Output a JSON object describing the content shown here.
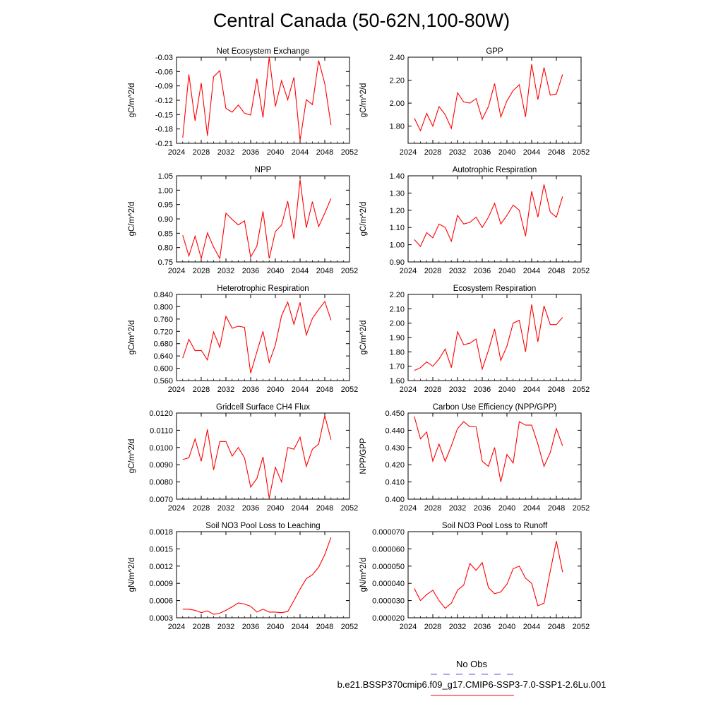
{
  "figure": {
    "title": "Central Canada (50-62N,100-80W)",
    "line_color": "#ff0000",
    "obs_color": "#5555dd"
  },
  "legend": {
    "obs_label": "No Obs",
    "model_label": "b.e21.BSSP370cmip6.f09_g17.CMIP6-SSP3-7.0-SSP1-2.6Lu.001"
  },
  "chart_data": [
    {
      "type": "line",
      "title": "Net Ecosystem Exchange",
      "ylabel": "gC/m^2/d",
      "xlabel": "",
      "xlim": [
        2024,
        2052
      ],
      "xticks": [
        "2024",
        "2028",
        "2032",
        "2036",
        "2040",
        "2044",
        "2048",
        "2052"
      ],
      "ylim": [
        -0.21,
        -0.03
      ],
      "yticks": [
        "-0.21",
        "-0.18",
        "-0.15",
        "-0.12",
        "-0.09",
        "-0.06",
        "-0.03"
      ],
      "x": [
        2025,
        2026,
        2027,
        2028,
        2029,
        2030,
        2031,
        2032,
        2033,
        2034,
        2035,
        2036,
        2037,
        2038,
        2039,
        2040,
        2041,
        2042,
        2043,
        2044,
        2045,
        2046,
        2047,
        2048,
        2049
      ],
      "y": [
        -0.198,
        -0.066,
        -0.163,
        -0.084,
        -0.194,
        -0.071,
        -0.058,
        -0.137,
        -0.145,
        -0.13,
        -0.147,
        -0.151,
        -0.075,
        -0.156,
        -0.03,
        -0.133,
        -0.079,
        -0.119,
        -0.072,
        -0.204,
        -0.119,
        -0.129,
        -0.037,
        -0.085,
        -0.172
      ],
      "grid": false
    },
    {
      "type": "line",
      "title": "GPP",
      "ylabel": "gC/m^2/d",
      "xlabel": "",
      "xlim": [
        2024,
        2052
      ],
      "xticks": [
        "2024",
        "2028",
        "2032",
        "2036",
        "2040",
        "2044",
        "2048",
        "2052"
      ],
      "ylim": [
        1.65,
        2.4
      ],
      "yticks": [
        "1.80",
        "2.00",
        "2.20",
        "2.40"
      ],
      "x": [
        2025,
        2026,
        2027,
        2028,
        2029,
        2030,
        2031,
        2032,
        2033,
        2034,
        2035,
        2036,
        2037,
        2038,
        2039,
        2040,
        2041,
        2042,
        2043,
        2044,
        2045,
        2046,
        2047,
        2048,
        2049
      ],
      "y": [
        1.87,
        1.76,
        1.91,
        1.8,
        1.97,
        1.9,
        1.78,
        2.09,
        2.01,
        2.0,
        2.04,
        1.86,
        1.97,
        2.17,
        1.88,
        2.02,
        2.11,
        2.16,
        1.88,
        2.34,
        2.03,
        2.31,
        2.07,
        2.08,
        2.25
      ],
      "grid": false
    },
    {
      "type": "line",
      "title": "NPP",
      "ylabel": "gC/m^2/d",
      "xlabel": "",
      "xlim": [
        2024,
        2052
      ],
      "xticks": [
        "2024",
        "2028",
        "2032",
        "2036",
        "2040",
        "2044",
        "2048",
        "2052"
      ],
      "ylim": [
        0.75,
        1.05
      ],
      "yticks": [
        "0.75",
        "0.80",
        "0.85",
        "0.90",
        "0.95",
        "1.00",
        "1.05"
      ],
      "x": [
        2025,
        2026,
        2027,
        2028,
        2029,
        2030,
        2031,
        2032,
        2033,
        2034,
        2035,
        2036,
        2037,
        2038,
        2039,
        2040,
        2041,
        2042,
        2043,
        2044,
        2045,
        2046,
        2047,
        2048,
        2049
      ],
      "y": [
        0.843,
        0.771,
        0.84,
        0.762,
        0.851,
        0.802,
        0.762,
        0.92,
        0.898,
        0.879,
        0.893,
        0.767,
        0.805,
        0.926,
        0.762,
        0.856,
        0.878,
        0.962,
        0.83,
        1.036,
        0.869,
        0.96,
        0.873,
        0.92,
        0.971
      ],
      "grid": false
    },
    {
      "type": "line",
      "title": "Autotrophic Respiration",
      "ylabel": "gC/m^2/d",
      "xlabel": "",
      "xlim": [
        2024,
        2052
      ],
      "xticks": [
        "2024",
        "2028",
        "2032",
        "2036",
        "2040",
        "2044",
        "2048",
        "2052"
      ],
      "ylim": [
        0.9,
        1.4
      ],
      "yticks": [
        "0.90",
        "1.00",
        "1.10",
        "1.20",
        "1.30",
        "1.40"
      ],
      "x": [
        2025,
        2026,
        2027,
        2028,
        2029,
        2030,
        2031,
        2032,
        2033,
        2034,
        2035,
        2036,
        2037,
        2038,
        2039,
        2040,
        2041,
        2042,
        2043,
        2044,
        2045,
        2046,
        2047,
        2048,
        2049
      ],
      "y": [
        1.03,
        0.99,
        1.07,
        1.04,
        1.12,
        1.1,
        1.02,
        1.17,
        1.12,
        1.13,
        1.16,
        1.1,
        1.16,
        1.24,
        1.12,
        1.17,
        1.23,
        1.2,
        1.05,
        1.31,
        1.16,
        1.35,
        1.19,
        1.16,
        1.28
      ],
      "grid": false
    },
    {
      "type": "line",
      "title": "Heterotrophic Respiration",
      "ylabel": "gC/m^2/d",
      "xlabel": "",
      "xlim": [
        2024,
        2052
      ],
      "xticks": [
        "2024",
        "2028",
        "2032",
        "2036",
        "2040",
        "2044",
        "2048",
        "2052"
      ],
      "ylim": [
        0.56,
        0.84
      ],
      "yticks": [
        "0.560",
        "0.600",
        "0.640",
        "0.680",
        "0.720",
        "0.760",
        "0.800",
        "0.840"
      ],
      "x": [
        2025,
        2026,
        2027,
        2028,
        2029,
        2030,
        2031,
        2032,
        2033,
        2034,
        2035,
        2036,
        2037,
        2038,
        2039,
        2040,
        2041,
        2042,
        2043,
        2044,
        2045,
        2046,
        2047,
        2048,
        2049
      ],
      "y": [
        0.633,
        0.694,
        0.657,
        0.658,
        0.627,
        0.718,
        0.668,
        0.769,
        0.73,
        0.737,
        0.733,
        0.584,
        0.653,
        0.72,
        0.619,
        0.676,
        0.771,
        0.815,
        0.743,
        0.814,
        0.708,
        0.762,
        0.791,
        0.817,
        0.756
      ],
      "grid": false
    },
    {
      "type": "line",
      "title": "Ecosystem Respiration",
      "ylabel": "gC/m^2/d",
      "xlabel": "",
      "xlim": [
        2024,
        2052
      ],
      "xticks": [
        "2024",
        "2028",
        "2032",
        "2036",
        "2040",
        "2044",
        "2048",
        "2052"
      ],
      "ylim": [
        1.6,
        2.2
      ],
      "yticks": [
        "1.60",
        "1.70",
        "1.80",
        "1.90",
        "2.00",
        "2.10",
        "2.20"
      ],
      "x": [
        2025,
        2026,
        2027,
        2028,
        2029,
        2030,
        2031,
        2032,
        2033,
        2034,
        2035,
        2036,
        2037,
        2038,
        2039,
        2040,
        2041,
        2042,
        2043,
        2044,
        2045,
        2046,
        2047,
        2048,
        2049
      ],
      "y": [
        1.67,
        1.69,
        1.73,
        1.7,
        1.75,
        1.82,
        1.69,
        1.94,
        1.85,
        1.86,
        1.89,
        1.68,
        1.81,
        1.96,
        1.74,
        1.84,
        2.0,
        2.02,
        1.8,
        2.13,
        1.87,
        2.12,
        1.99,
        1.99,
        2.04
      ],
      "grid": false
    },
    {
      "type": "line",
      "title": "Gridcell Surface CH4 Flux",
      "ylabel": "gC/m^2/d",
      "xlabel": "",
      "xlim": [
        2024,
        2052
      ],
      "xticks": [
        "2024",
        "2028",
        "2032",
        "2036",
        "2040",
        "2044",
        "2048",
        "2052"
      ],
      "ylim": [
        0.007,
        0.012
      ],
      "yticks": [
        "0.0070",
        "0.0080",
        "0.0090",
        "0.0100",
        "0.0110",
        "0.0120"
      ],
      "x": [
        2025,
        2026,
        2027,
        2028,
        2029,
        2030,
        2031,
        2032,
        2033,
        2034,
        2035,
        2036,
        2037,
        2038,
        2039,
        2040,
        2041,
        2042,
        2043,
        2044,
        2045,
        2046,
        2047,
        2048,
        2049
      ],
      "y": [
        0.0093,
        0.0094,
        0.0105,
        0.0092,
        0.01105,
        0.0087,
        0.01035,
        0.01035,
        0.0095,
        0.01,
        0.0094,
        0.0077,
        0.0082,
        0.00945,
        0.00705,
        0.00885,
        0.008,
        0.01,
        0.0099,
        0.0106,
        0.0089,
        0.0099,
        0.0102,
        0.01185,
        0.01045
      ],
      "grid": false
    },
    {
      "type": "line",
      "title": "Carbon Use Efficiency (NPP/GPP)",
      "ylabel": "NPP/GPP",
      "xlabel": "",
      "xlim": [
        2024,
        2052
      ],
      "xticks": [
        "2024",
        "2028",
        "2032",
        "2036",
        "2040",
        "2044",
        "2048",
        "2052"
      ],
      "ylim": [
        0.4,
        0.45
      ],
      "yticks": [
        "0.400",
        "0.410",
        "0.420",
        "0.430",
        "0.440",
        "0.450"
      ],
      "x": [
        2025,
        2026,
        2027,
        2028,
        2029,
        2030,
        2031,
        2032,
        2033,
        2034,
        2035,
        2036,
        2037,
        2038,
        2039,
        2040,
        2041,
        2042,
        2043,
        2044,
        2045,
        2046,
        2047,
        2048,
        2049
      ],
      "y": [
        0.448,
        0.435,
        0.439,
        0.422,
        0.432,
        0.422,
        0.431,
        0.441,
        0.445,
        0.442,
        0.442,
        0.422,
        0.419,
        0.43,
        0.41,
        0.426,
        0.421,
        0.445,
        0.443,
        0.443,
        0.432,
        0.419,
        0.427,
        0.441,
        0.431
      ],
      "grid": false
    },
    {
      "type": "line",
      "title": "Soil NO3 Pool Loss to Leaching",
      "ylabel": "gN/m^2/d",
      "xlabel": "",
      "xlim": [
        2024,
        2052
      ],
      "xticks": [
        "2024",
        "2028",
        "2032",
        "2036",
        "2040",
        "2044",
        "2048",
        "2052"
      ],
      "ylim": [
        0.0003,
        0.0018
      ],
      "yticks": [
        "0.0003",
        "0.0006",
        "0.0009",
        "0.0012",
        "0.0015",
        "0.0018"
      ],
      "x": [
        2025,
        2026,
        2027,
        2028,
        2029,
        2030,
        2031,
        2032,
        2033,
        2034,
        2035,
        2036,
        2037,
        2038,
        2039,
        2040,
        2041,
        2042,
        2043,
        2044,
        2045,
        2046,
        2047,
        2048,
        2049
      ],
      "y": [
        0.00045,
        0.00045,
        0.00043,
        0.00039,
        0.00042,
        0.00036,
        0.00038,
        0.00043,
        0.00049,
        0.00056,
        0.00054,
        0.0005,
        0.0004,
        0.00045,
        0.0004,
        0.0004,
        0.00039,
        0.00041,
        0.0006,
        0.0008,
        0.00098,
        0.00105,
        0.00118,
        0.0014,
        0.0017
      ],
      "grid": false
    },
    {
      "type": "line",
      "title": "Soil NO3 Pool Loss to Runoff",
      "ylabel": "gN/m^2/d",
      "xlabel": "",
      "xlim": [
        2024,
        2052
      ],
      "xticks": [
        "2024",
        "2028",
        "2032",
        "2036",
        "2040",
        "2044",
        "2048",
        "2052"
      ],
      "ylim": [
        2e-05,
        7e-05
      ],
      "yticks": [
        "0.000020",
        "0.000030",
        "0.000040",
        "0.000050",
        "0.000060",
        "0.000070"
      ],
      "x": [
        2025,
        2026,
        2027,
        2028,
        2029,
        2030,
        2031,
        2032,
        2033,
        2034,
        2035,
        2036,
        2037,
        2038,
        2039,
        2040,
        2041,
        2042,
        2043,
        2044,
        2045,
        2046,
        2047,
        2048,
        2049
      ],
      "y": [
        3.7e-05,
        3e-05,
        3.35e-05,
        3.6e-05,
        3e-05,
        2.55e-05,
        2.85e-05,
        3.6e-05,
        3.9e-05,
        5.15e-05,
        4.75e-05,
        5.2e-05,
        3.75e-05,
        3.4e-05,
        3.5e-05,
        3.95e-05,
        4.85e-05,
        5e-05,
        4.3e-05,
        4e-05,
        2.7e-05,
        2.85e-05,
        4.7e-05,
        6.45e-05,
        4.65e-05
      ],
      "grid": false
    }
  ]
}
